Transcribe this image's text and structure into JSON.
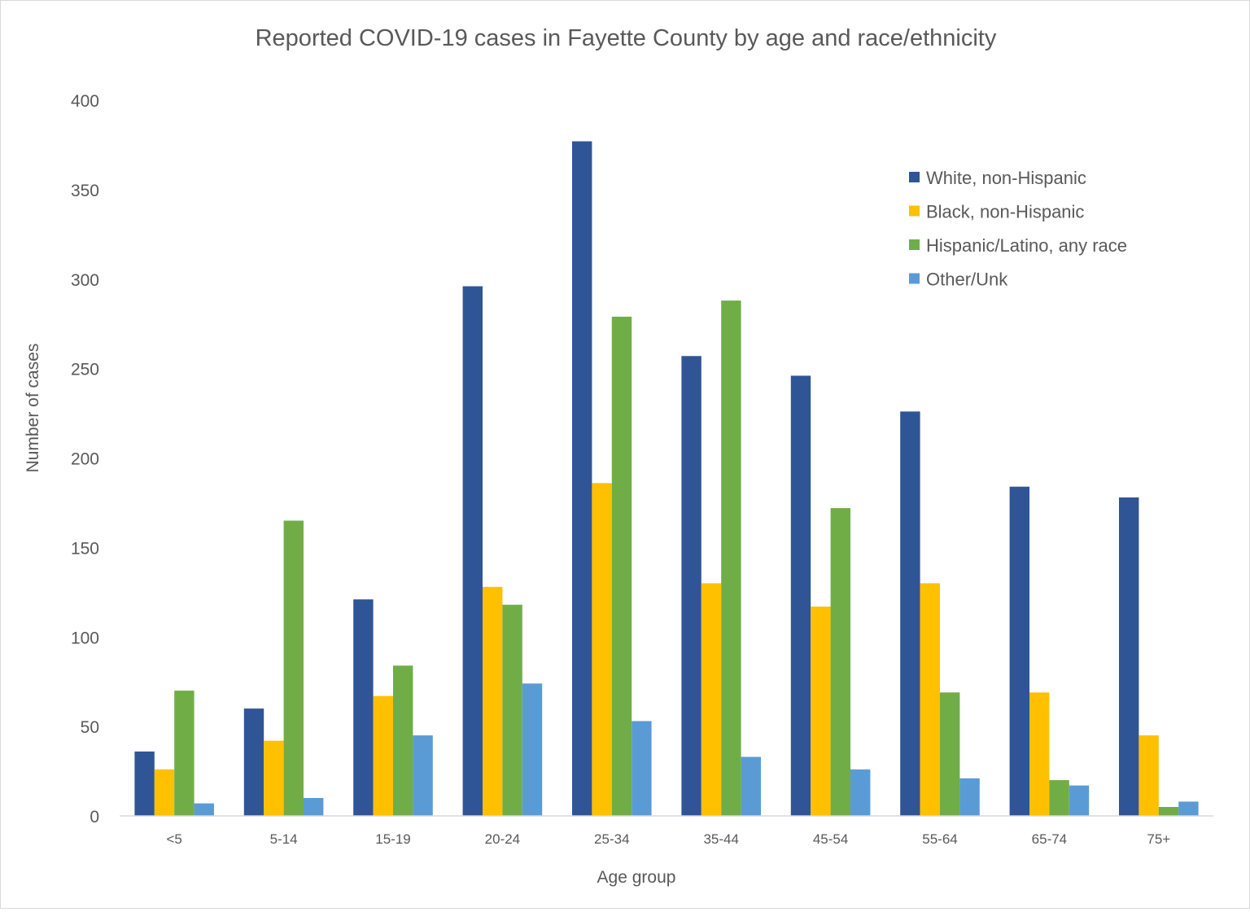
{
  "chart_data": {
    "type": "bar",
    "title": "Reported COVID-19 cases in Fayette County by age and race/ethnicity",
    "xlabel": "Age group",
    "ylabel": "Number of cases",
    "ylim": [
      0,
      400
    ],
    "yticks": [
      0,
      50,
      100,
      150,
      200,
      250,
      300,
      350,
      400
    ],
    "grid": false,
    "legend_position": "top-right",
    "categories": [
      "<5",
      "5-14",
      "15-19",
      "20-24",
      "25-34",
      "35-44",
      "45-54",
      "55-64",
      "65-74",
      "75+"
    ],
    "series": [
      {
        "name": "White, non-Hispanic",
        "color": "#2F5597",
        "values": [
          36,
          60,
          121,
          296,
          377,
          257,
          246,
          226,
          184,
          178
        ]
      },
      {
        "name": "Black, non-Hispanic",
        "color": "#FFC000",
        "values": [
          26,
          42,
          67,
          128,
          186,
          130,
          117,
          130,
          69,
          45
        ]
      },
      {
        "name": "Hispanic/Latino, any race",
        "color": "#70AD47",
        "values": [
          70,
          165,
          84,
          118,
          279,
          288,
          172,
          69,
          20,
          5
        ]
      },
      {
        "name": "Other/Unk",
        "color": "#5B9BD5",
        "values": [
          7,
          10,
          45,
          74,
          53,
          33,
          26,
          21,
          17,
          8
        ]
      }
    ]
  }
}
